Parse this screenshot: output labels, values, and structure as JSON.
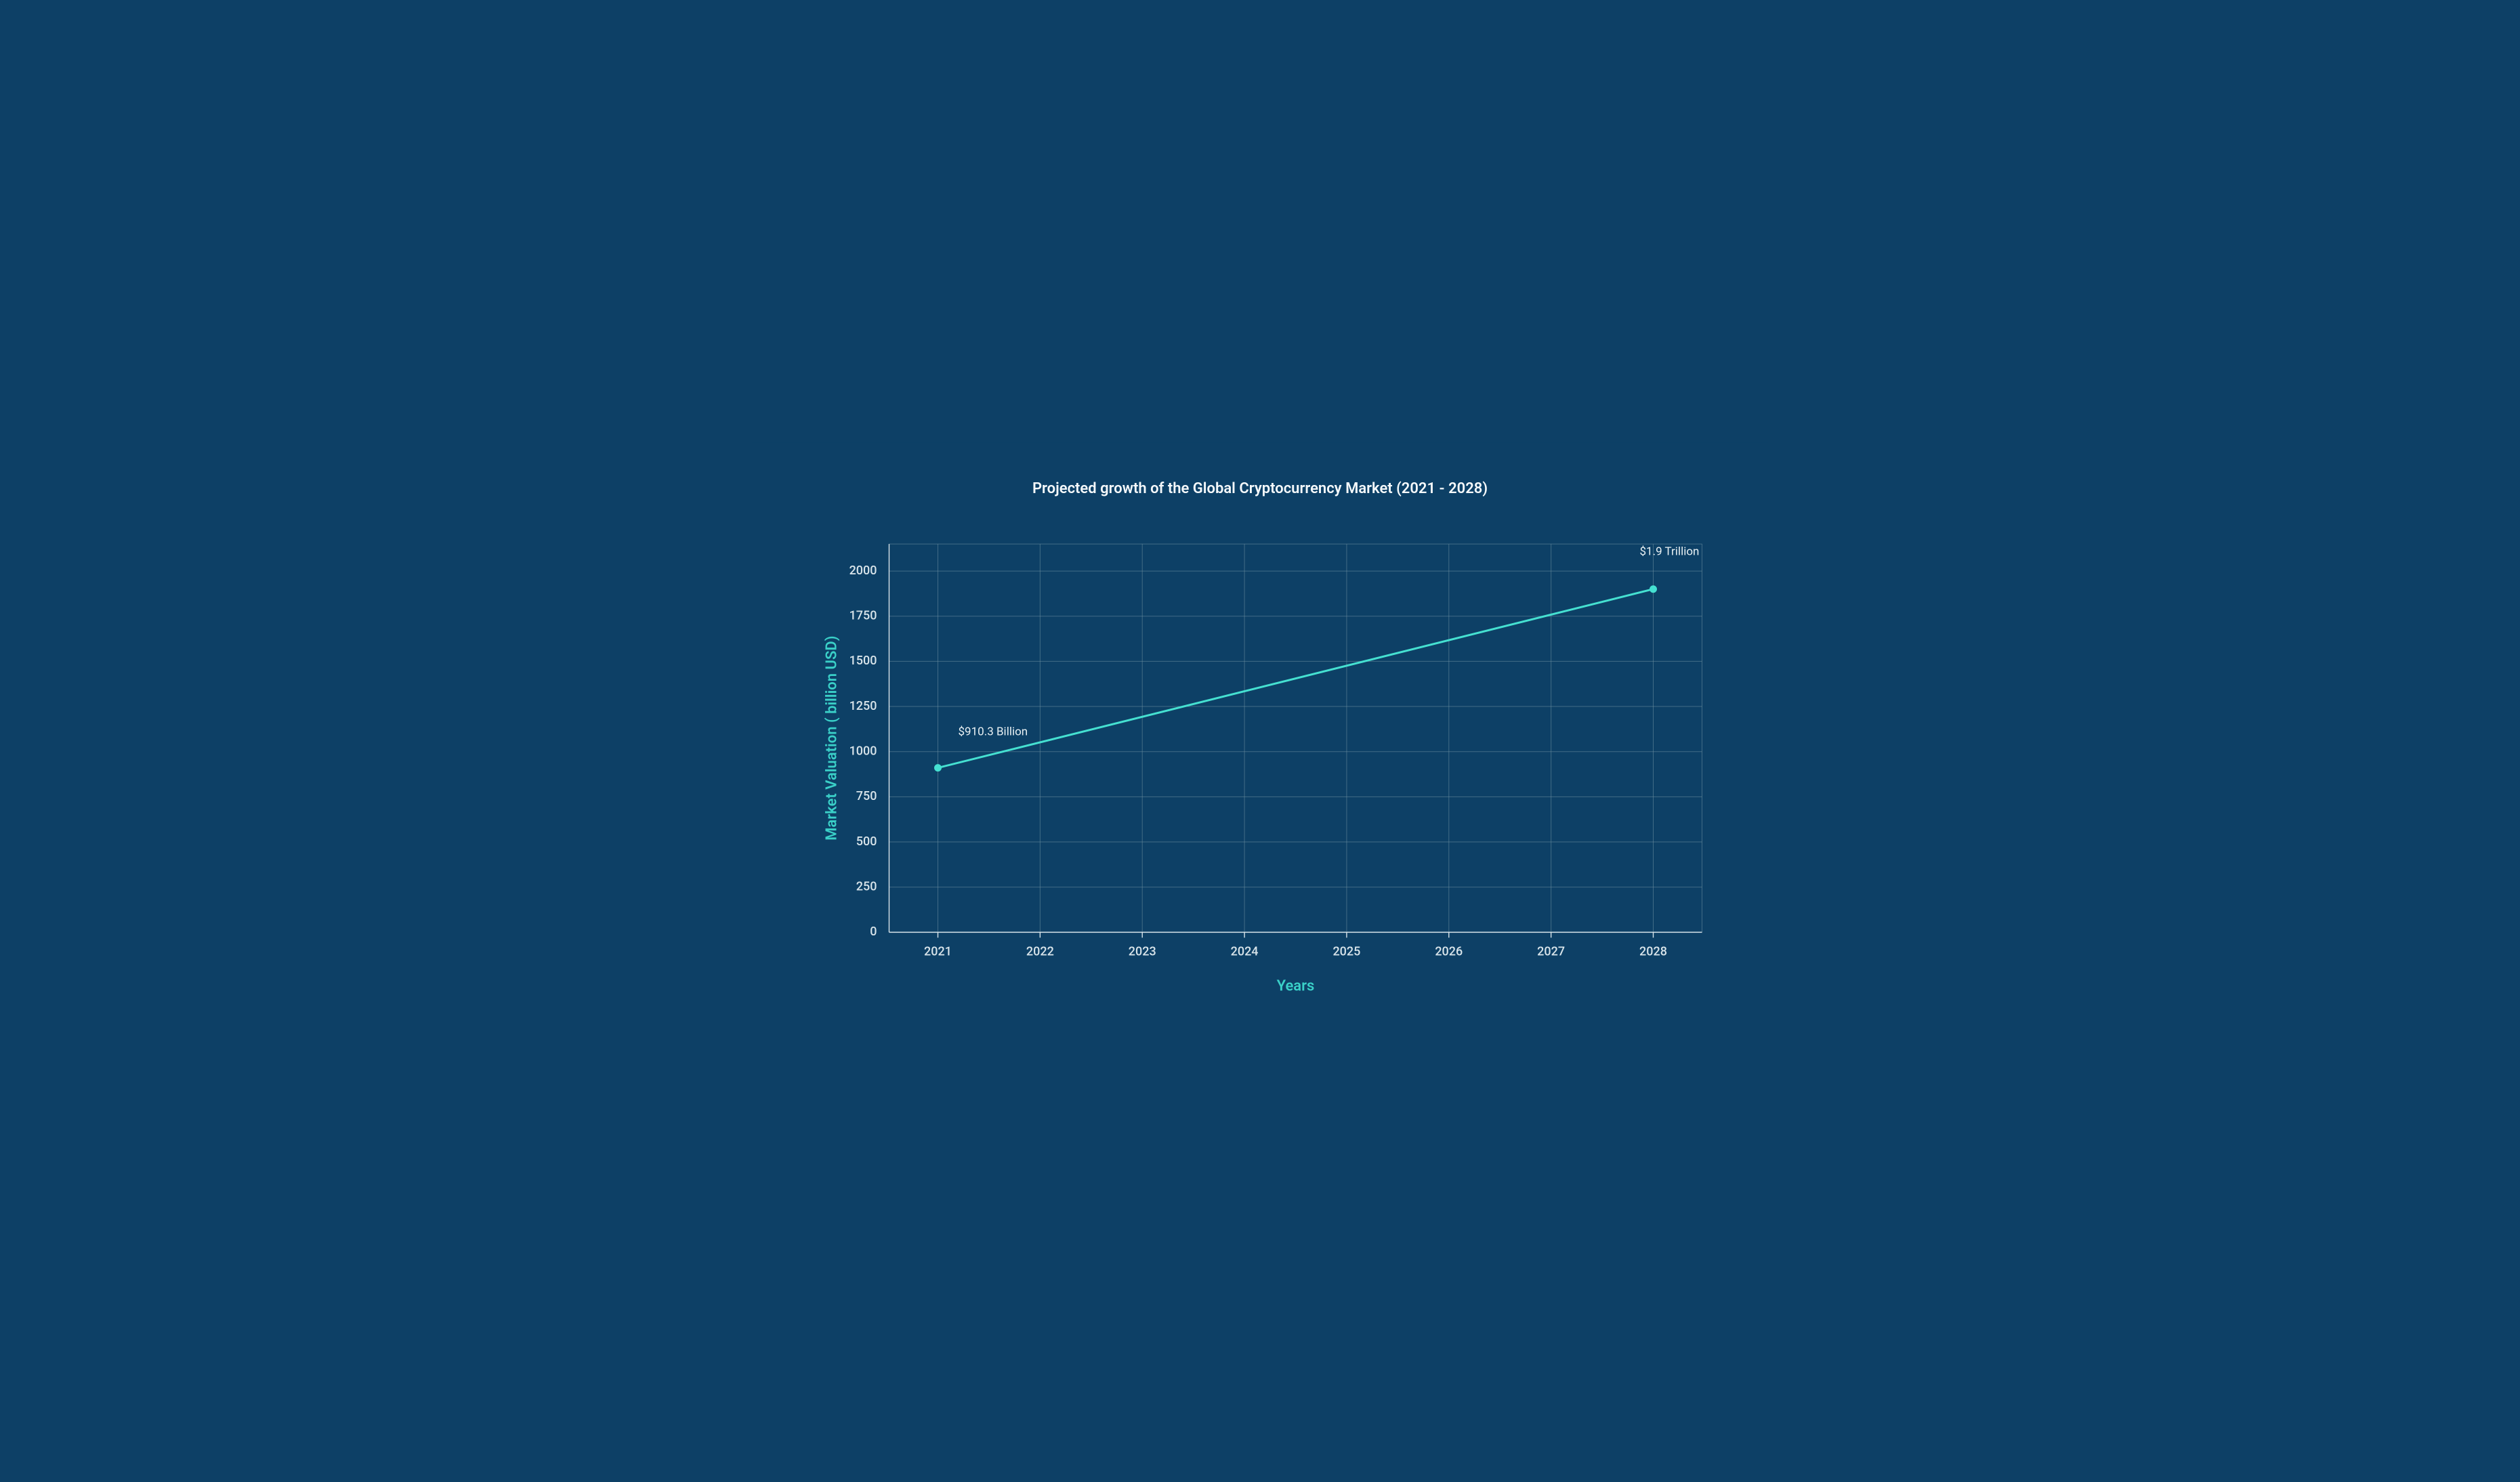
{
  "chart": {
    "type": "line",
    "title": "Projected growth of the Global Cryptocurrency Market (2021 - 2028)",
    "title_fontsize": 22,
    "title_fontweight": "600",
    "title_color": "#f5f9fb",
    "xlabel": "Years",
    "xlabel_color": "#3ad0c8",
    "xlabel_fontsize": 22,
    "xlabel_fontweight": "600",
    "ylabel": "Market Valuation ( billion USD)",
    "ylabel_color": "#3ad0c8",
    "ylabel_fontsize": 22,
    "ylabel_fontweight": "600",
    "background_color": "#0d4066",
    "plot_background_color": "#0d4066",
    "grid_color": "#6f8fa1",
    "grid_opacity": 0.55,
    "grid_width": 1,
    "axis_line_color": "#d8e4ea",
    "axis_line_width": 1.4,
    "tick_color": "#d8e4ea",
    "tick_fontsize": 18,
    "tick_fontweight": "500",
    "line_color": "#45e0d1",
    "line_width": 3,
    "marker_radius": 5,
    "marker_fill": "#45e0d1",
    "marker_stroke": "#45e0d1",
    "annotation_color": "#e8f0f3",
    "annotation_fontsize": 17,
    "x_categories": [
      "2021",
      "2022",
      "2023",
      "2024",
      "2025",
      "2026",
      "2027",
      "2028"
    ],
    "x_tick_inner_pad": 0.06,
    "y_ticks": [
      0,
      250,
      500,
      750,
      1000,
      1250,
      1500,
      1750,
      2000
    ],
    "ylim": [
      0,
      2150
    ],
    "data_points": [
      {
        "x": "2021",
        "y": 910.3,
        "label": "$910.3 Billion",
        "label_dx": 30,
        "label_dy": -48
      },
      {
        "x": "2028",
        "y": 1900,
        "label": "$1.9 Trillion",
        "label_dx": -20,
        "label_dy": -50
      }
    ],
    "margins": {
      "left_pct": 13.5,
      "right_pct": 6.5,
      "top_pct": 17.0,
      "bottom_pct": 18.0
    },
    "viewbox_w": 1500,
    "viewbox_h": 882
  }
}
